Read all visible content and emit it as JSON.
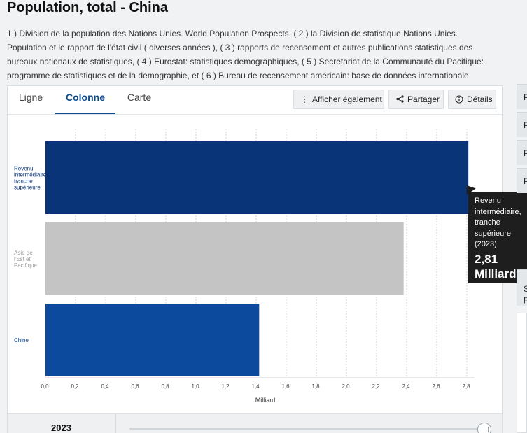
{
  "page": {
    "title": "Population, total - China",
    "source_note": "1 ) Division de la population des Nations Unies. World Population Prospects, ( 2 ) la Division de statistique Nations Unies. Population et le rapport de l'état civil ( diverses années ), ( 3 ) rapports de recensement et autres publications statistiques des bureaux nationaux de statistiques, ( 4 ) Eurostat: statistiques demographiques, ( 5 ) Secrétariat de la Communauté du Pacifique: programme de statistiques et de la demographie, et ( 6 ) Bureau de recensement américain: base de données internationale."
  },
  "tabs": [
    {
      "label": "Ligne",
      "active": false
    },
    {
      "label": "Colonne",
      "active": true
    },
    {
      "label": "Carte",
      "active": false
    }
  ],
  "toolbar": {
    "show_also": "Afficher également",
    "share": "Partager",
    "details": "Détails"
  },
  "chart_data": {
    "type": "bar",
    "orientation": "horizontal",
    "categories": [
      "Revenu intermédiaire, tranche supérieure",
      "Asie de l'Est et Pacifique",
      "Chine"
    ],
    "category_labels": [
      [
        "Revenu",
        "intermédiaire,",
        "tranche",
        "supérieure"
      ],
      [
        "Asie de",
        "l'Est et",
        "Pacifique"
      ],
      [
        "Chine"
      ]
    ],
    "values": [
      2.81,
      2.38,
      1.42
    ],
    "colors": [
      "#0a3478",
      "#c4c4c4",
      "#0b4a9c"
    ],
    "label_colors": [
      "#0a3478",
      "#9a9a9a",
      "#0b4a9c"
    ],
    "xlabel": "Milliard",
    "xlim": [
      0,
      2.85
    ],
    "ticks": [
      "0,0",
      "0,2",
      "0,4",
      "0,6",
      "0,8",
      "1,0",
      "1,2",
      "1,4",
      "1,6",
      "1,8",
      "2,0",
      "2,2",
      "2,4",
      "2,6",
      "2,8"
    ],
    "grid": true
  },
  "tooltip": {
    "lines": [
      "Revenu",
      "intermédiaire,",
      "tranche",
      "supérieure",
      "(2023)"
    ],
    "value": "2,81",
    "unit": "Milliard"
  },
  "year_bar": {
    "year": "2023"
  },
  "side": {
    "items": [
      "P",
      "P",
      "P",
      "P",
      "S",
      "p"
    ]
  }
}
